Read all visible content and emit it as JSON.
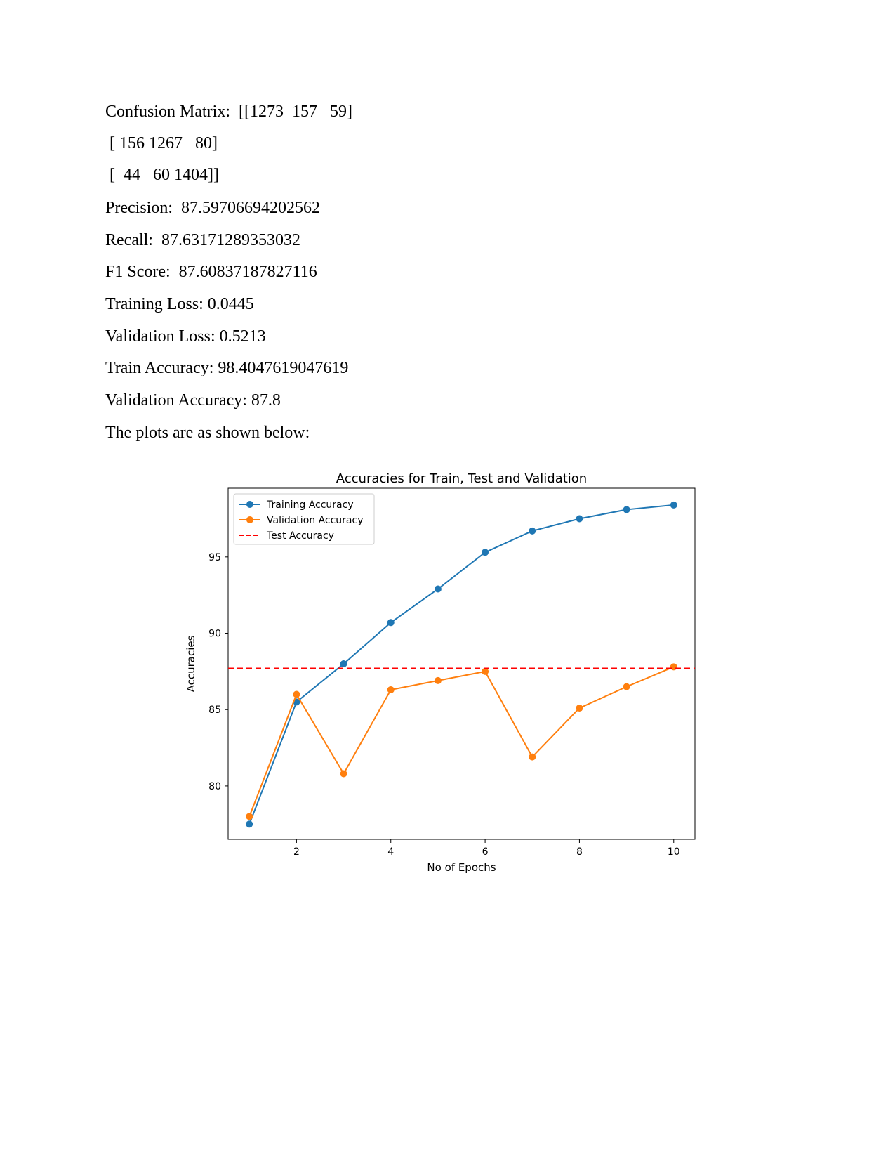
{
  "text_lines": {
    "cm1": "Confusion Matrix:  [[1273  157   59]",
    "cm2": " [ 156 1267   80]",
    "cm3": " [  44   60 1404]]",
    "precision": "Precision:  87.59706694202562",
    "recall": "Recall:  87.63171289353032",
    "f1": "F1 Score:  87.60837187827116",
    "train_loss": "Training Loss: 0.0445",
    "val_loss": "Validation Loss: 0.5213",
    "train_acc": "Train Accuracy: 98.4047619047619",
    "val_acc": "Validation Accuracy: 87.8",
    "plots_intro": "The plots are as shown below:"
  },
  "chart_data": {
    "type": "line",
    "title": "Accuracies for Train, Test and Validation",
    "xlabel": "No of Epochs",
    "ylabel": "Accuracies",
    "xlim": [
      0.55,
      10.45
    ],
    "ylim": [
      76.5,
      99.5
    ],
    "xticks": [
      2,
      4,
      6,
      8,
      10
    ],
    "yticks": [
      80,
      85,
      90,
      95
    ],
    "x": [
      1,
      2,
      3,
      4,
      5,
      6,
      7,
      8,
      9,
      10
    ],
    "series": [
      {
        "name": "Training Accuracy",
        "color": "#1f77b4",
        "style": "solid-marker",
        "values": [
          77.5,
          85.5,
          88.0,
          90.7,
          92.9,
          95.3,
          96.7,
          97.5,
          98.1,
          98.4
        ]
      },
      {
        "name": "Validation Accuracy",
        "color": "#ff7f0e",
        "style": "solid-marker",
        "values": [
          78.0,
          86.0,
          80.8,
          86.3,
          86.9,
          87.5,
          81.9,
          85.1,
          86.5,
          87.8
        ]
      },
      {
        "name": "Test Accuracy",
        "color": "#ff0000",
        "style": "dashed-hline",
        "value": 87.7
      }
    ],
    "legend": "top-left",
    "grid": false
  }
}
